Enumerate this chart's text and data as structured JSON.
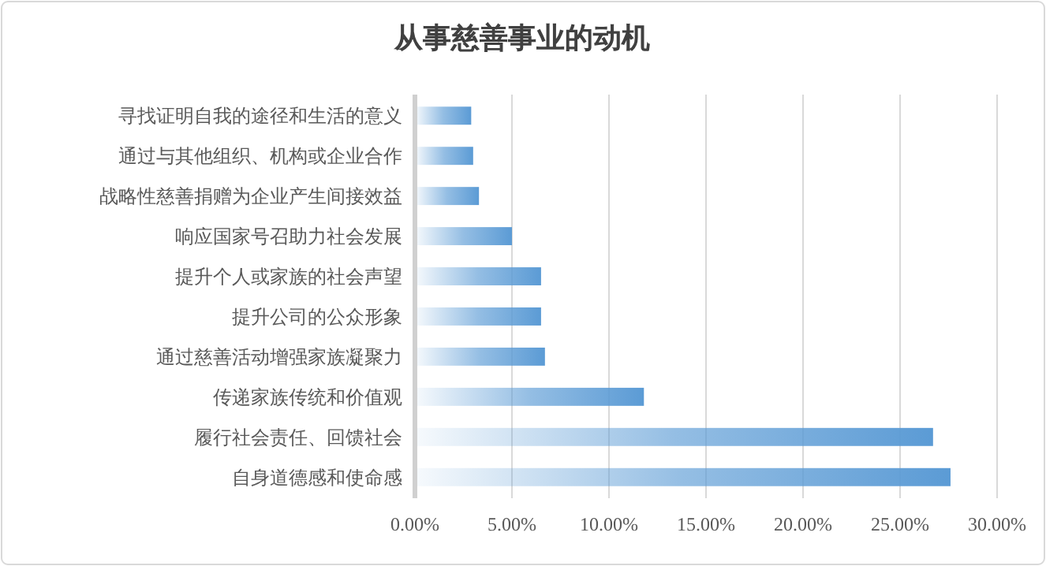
{
  "chart_data": {
    "type": "bar",
    "orientation": "horizontal",
    "title": "从事慈善事业的动机",
    "categories": [
      "寻找证明自我的途径和生活的意义",
      "通过与其他组织、机构或企业合作",
      "战略性慈善捐赠为企业产生间接效益",
      "响应国家号召助力社会发展",
      "提升个人或家族的社会声望",
      "提升公司的公众形象",
      "通过慈善活动增强家族凝聚力",
      "传递家族传统和价值观",
      "履行社会责任、回馈社会",
      "自身道德感和使命感"
    ],
    "values": [
      2.9,
      3.0,
      3.3,
      5.0,
      6.5,
      6.5,
      6.7,
      11.8,
      26.7,
      27.6
    ],
    "color": "#5b9bd5",
    "xlim": [
      0,
      30
    ],
    "xticks": [
      {
        "value": 0,
        "label": "0.00%"
      },
      {
        "value": 5,
        "label": "5.00%"
      },
      {
        "value": 10,
        "label": "10.00%"
      },
      {
        "value": 15,
        "label": "15.00%"
      },
      {
        "value": 20,
        "label": "20.00%"
      },
      {
        "value": 25,
        "label": "25.00%"
      },
      {
        "value": 30,
        "label": "30.00%"
      }
    ],
    "grid": "x"
  }
}
